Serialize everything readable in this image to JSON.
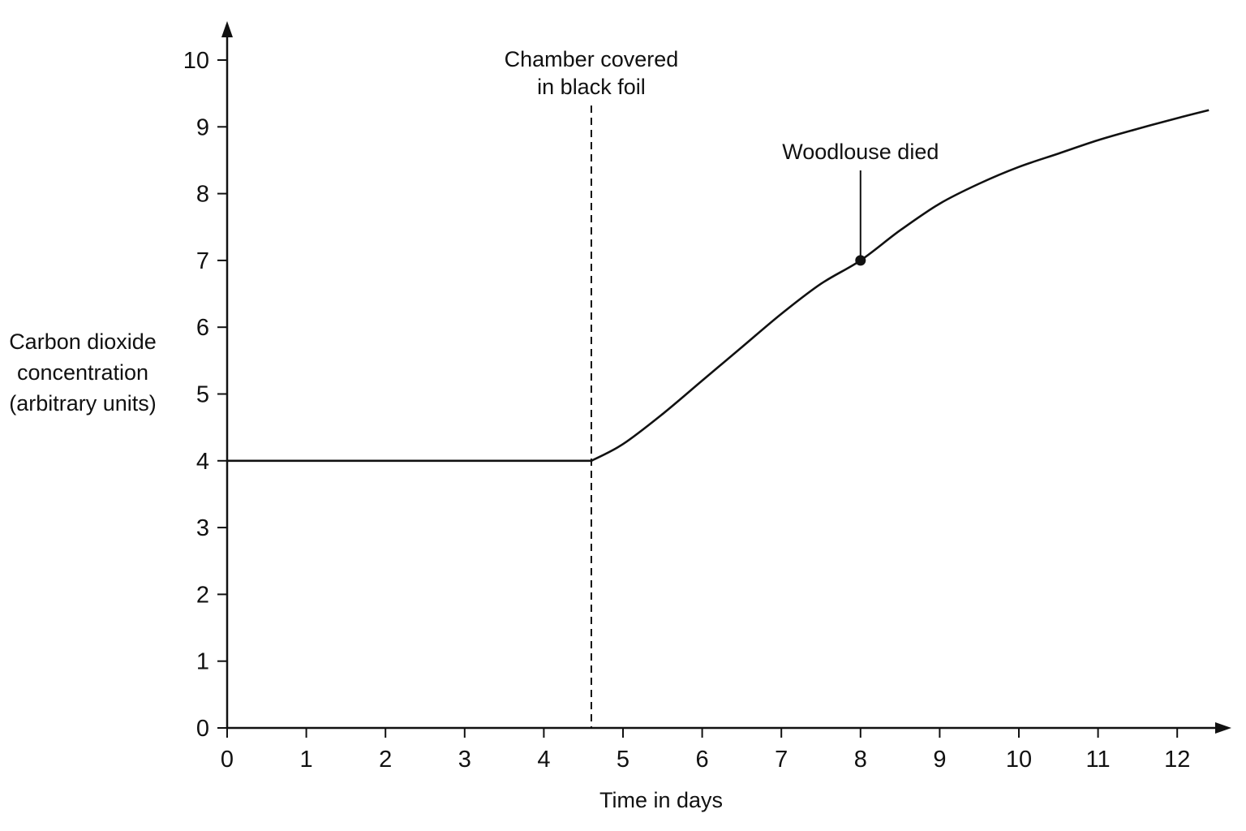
{
  "chart_data": {
    "type": "line",
    "title": "",
    "xlabel": "Time in days",
    "ylabel_lines": [
      "Carbon dioxide",
      "concentration",
      "(arbitrary units)"
    ],
    "xlim": [
      0,
      12.5
    ],
    "ylim": [
      0,
      10.6
    ],
    "x_ticks": [
      0,
      1,
      2,
      3,
      4,
      5,
      6,
      7,
      8,
      9,
      10,
      11,
      12
    ],
    "y_ticks": [
      0,
      1,
      2,
      3,
      4,
      5,
      6,
      7,
      8,
      9,
      10
    ],
    "grid": false,
    "legend": "none",
    "series": [
      {
        "x": [
          0,
          4.6,
          5.0,
          5.5,
          6.0,
          6.5,
          7.0,
          7.5,
          8.0,
          8.5,
          9.0,
          9.5,
          10.0,
          10.5,
          11.0,
          11.5,
          12.0,
          12.4
        ],
        "y": [
          4.0,
          4.0,
          4.25,
          4.7,
          5.2,
          5.7,
          6.2,
          6.65,
          7.0,
          7.45,
          7.85,
          8.15,
          8.4,
          8.6,
          8.8,
          8.97,
          9.13,
          9.25
        ]
      }
    ],
    "annotations": [
      {
        "kind": "vertical-dashed-line",
        "x": 4.6,
        "text_lines": [
          "Chamber covered",
          "in black foil"
        ]
      },
      {
        "kind": "point-marker",
        "x": 8,
        "y": 7,
        "text_lines": [
          "Woodlouse died"
        ]
      }
    ]
  }
}
